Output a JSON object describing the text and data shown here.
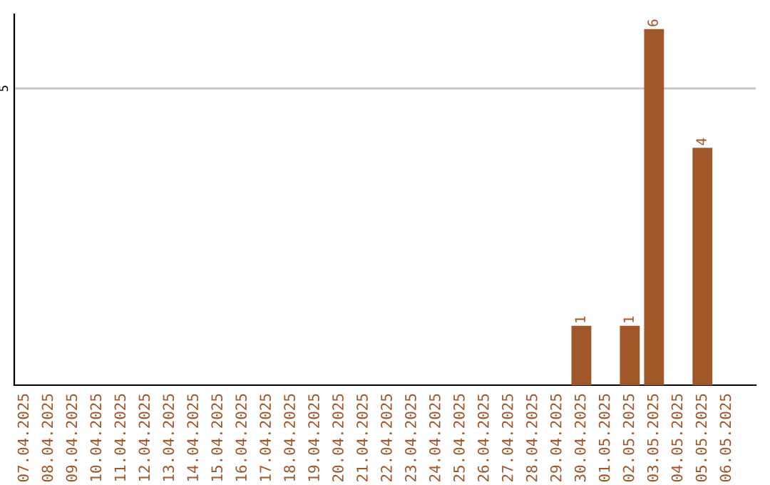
{
  "chart_data": {
    "type": "bar",
    "categories": [
      "07.04.2025",
      "08.04.2025",
      "09.04.2025",
      "10.04.2025",
      "11.04.2025",
      "12.04.2025",
      "13.04.2025",
      "14.04.2025",
      "15.04.2025",
      "16.04.2025",
      "17.04.2025",
      "18.04.2025",
      "19.04.2025",
      "20.04.2025",
      "21.04.2025",
      "22.04.2025",
      "23.04.2025",
      "24.04.2025",
      "25.04.2025",
      "26.04.2025",
      "27.04.2025",
      "28.04.2025",
      "29.04.2025",
      "30.04.2025",
      "01.05.2025",
      "02.05.2025",
      "03.05.2025",
      "04.05.2025",
      "05.05.2025",
      "06.05.2025"
    ],
    "values": [
      null,
      null,
      null,
      null,
      null,
      null,
      null,
      null,
      null,
      null,
      null,
      null,
      null,
      null,
      null,
      null,
      null,
      null,
      null,
      null,
      null,
      null,
      null,
      1,
      null,
      1,
      6,
      null,
      4,
      null
    ],
    "color": "#a0572a",
    "ylim": [
      0,
      6.25
    ],
    "yticks": [
      5
    ],
    "grid": "y",
    "data_labels": true,
    "legend": false
  }
}
